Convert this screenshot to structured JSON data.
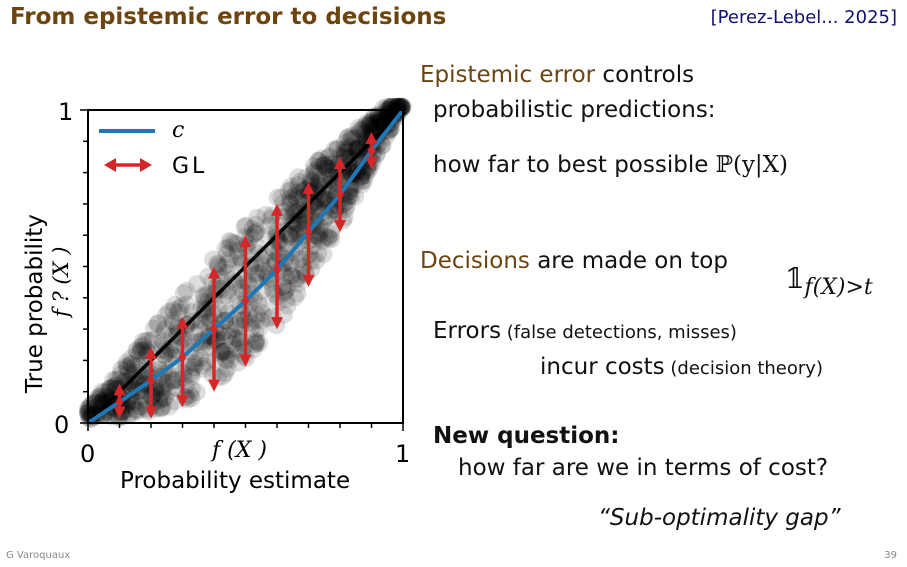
{
  "slide": {
    "title": "From epistemic error to decisions",
    "citation": "[Perez-Lebel... 2025]",
    "footer_author": "G Varoquaux",
    "page_number": "39"
  },
  "text": {
    "epistemic_highlight": "Epistemic error",
    "epistemic_rest": " controls",
    "epistemic_line2": "probabilistic predictions:",
    "how_far": "how far to best possible ",
    "prob_expr": "ℙ(y|X)",
    "decisions_highlight": "Decisions",
    "decisions_rest": " are made on top",
    "indicator_symbol": "𝟙",
    "indicator_sub": "f(X)>t",
    "errors": "Errors",
    "errors_paren": " (false detections, misses)",
    "incur": "incur costs",
    "incur_paren": " (decision theory)",
    "new_question": "New question:",
    "how_far_cost": "how far are we in terms of cost?",
    "gap": "“Sub-optimality gap”"
  },
  "chart_data": {
    "type": "scatter",
    "xlabel": "Probability estimate",
    "xlabel_math": "f (X )",
    "ylabel": "True probability",
    "ylabel_math": "f ? (X )",
    "xlim": [
      0,
      1
    ],
    "ylim": [
      0,
      1
    ],
    "x_tick_labels": [
      "0",
      "1"
    ],
    "y_tick_labels": [
      "0",
      "1"
    ],
    "legend": {
      "placement": "top-left",
      "entries": [
        "c",
        "GL"
      ]
    },
    "colors": {
      "calibration": "#1f77b4",
      "gl": "#d62728",
      "scatter": "#000000",
      "diagonal": "#000000"
    },
    "calibration_curve": {
      "name": "c",
      "x": [
        0,
        0.1,
        0.2,
        0.3,
        0.4,
        0.5,
        0.6,
        0.7,
        0.8,
        0.9,
        1
      ],
      "y": [
        0,
        0.067,
        0.136,
        0.21,
        0.3,
        0.39,
        0.49,
        0.61,
        0.73,
        0.87,
        1
      ]
    },
    "gl_arrows": {
      "name": "GL",
      "x": [
        0.1,
        0.2,
        0.3,
        0.4,
        0.5,
        0.6,
        0.7,
        0.8,
        0.9
      ],
      "y_low": [
        0.014,
        0.014,
        0.05,
        0.1,
        0.18,
        0.3,
        0.435,
        0.61,
        0.81
      ],
      "y_high": [
        0.126,
        0.243,
        0.34,
        0.5,
        0.6,
        0.7,
        0.77,
        0.85,
        0.93
      ]
    }
  }
}
